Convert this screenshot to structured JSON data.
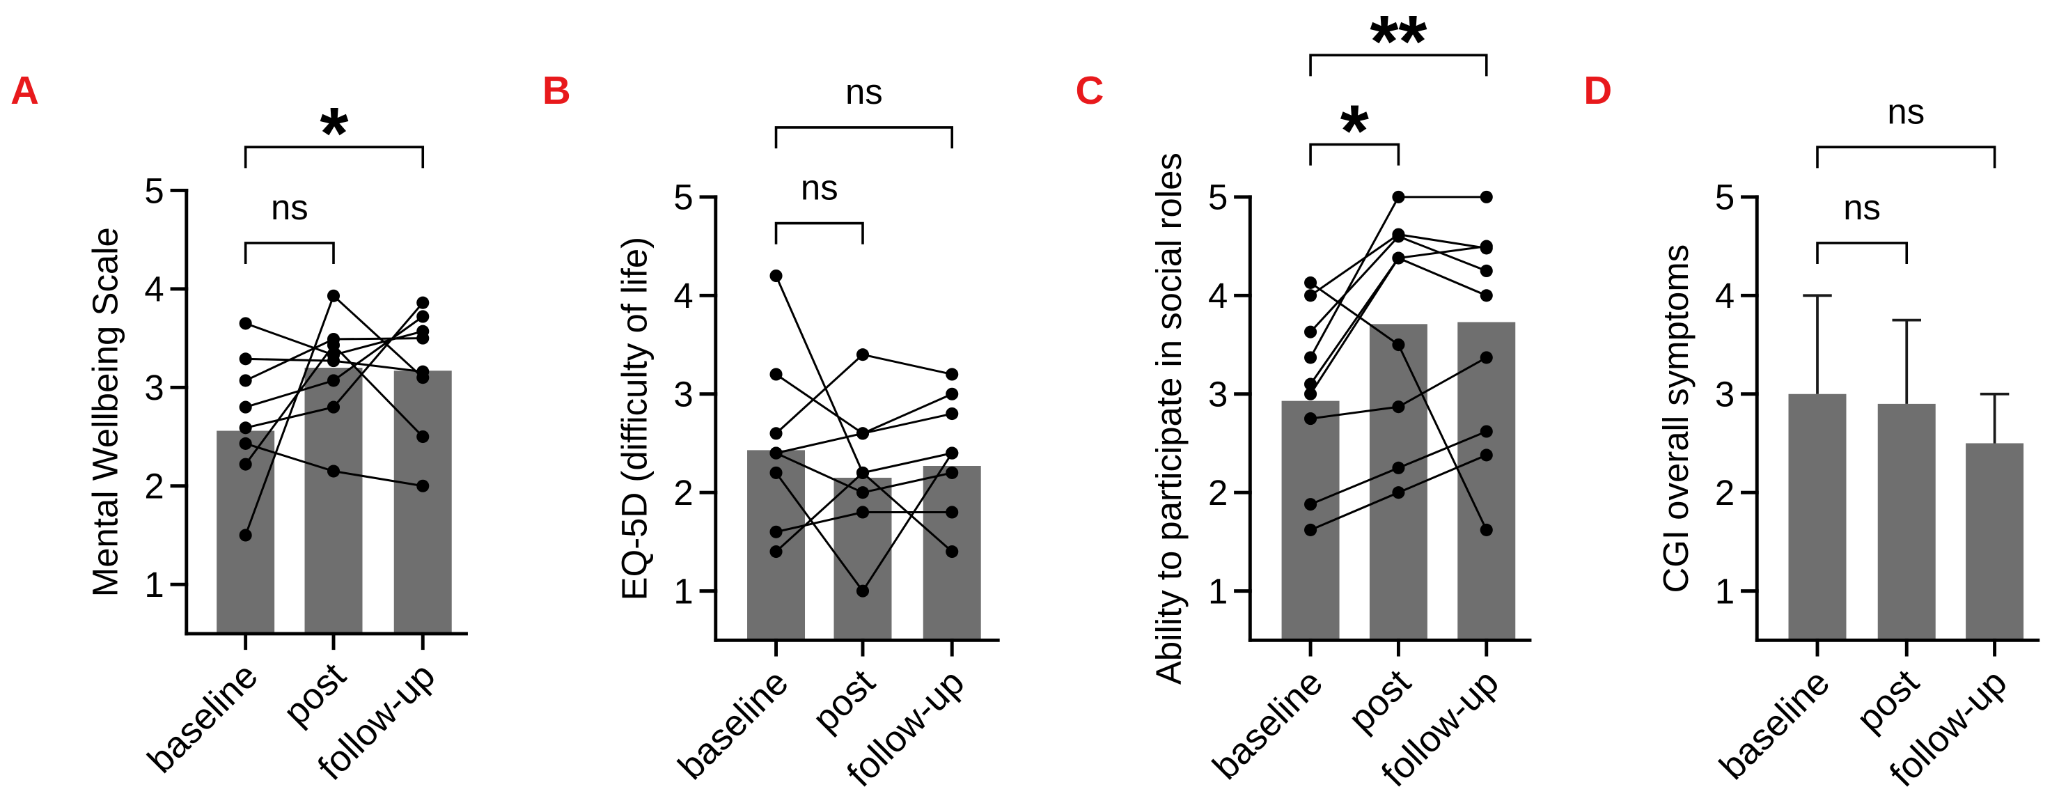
{
  "figure": {
    "colors": {
      "bar": "#6f6f6f",
      "marker": "#000000",
      "panel_label": "#e8191c"
    }
  },
  "chart_data": [
    {
      "panel_label": "A",
      "type": "bar",
      "categories": [
        "baseline",
        "post",
        "follow-up"
      ],
      "values": [
        2.56,
        3.2,
        3.17
      ],
      "paired_points": [
        [
          3.65,
          3.33,
          3.57
        ],
        [
          3.29,
          3.27,
          3.16
        ],
        [
          3.07,
          3.49,
          3.5
        ],
        [
          2.8,
          3.07,
          3.72
        ],
        [
          2.59,
          2.8,
          3.86
        ],
        [
          2.43,
          2.15,
          2.0
        ],
        [
          2.22,
          3.43,
          2.5
        ],
        [
          1.5,
          3.93,
          3.1
        ]
      ],
      "ylabel": "Mental Wellbeing Scale",
      "ylim": [
        0.5,
        5
      ],
      "yticks": [
        1,
        2,
        3,
        4,
        5
      ],
      "grid": false,
      "legend": false,
      "significance": [
        {
          "between": [
            0,
            1
          ],
          "label": "ns"
        },
        {
          "between": [
            0,
            2
          ],
          "label": "*"
        }
      ]
    },
    {
      "panel_label": "B",
      "type": "bar",
      "categories": [
        "baseline",
        "post",
        "follow-up"
      ],
      "values": [
        2.43,
        2.15,
        2.27
      ],
      "paired_points": [
        [
          4.2,
          2.2,
          2.4
        ],
        [
          3.2,
          2.6,
          3.0
        ],
        [
          2.6,
          3.4,
          3.2
        ],
        [
          2.4,
          2.6,
          2.8
        ],
        [
          2.4,
          2.0,
          2.2
        ],
        [
          2.2,
          1.0,
          2.4
        ],
        [
          1.6,
          1.8,
          1.8
        ],
        [
          1.4,
          2.2,
          1.4
        ]
      ],
      "ylabel": "EQ-5D (difficulty of life)",
      "ylim": [
        0.5,
        5
      ],
      "yticks": [
        1,
        2,
        3,
        4,
        5
      ],
      "grid": false,
      "legend": false,
      "significance": [
        {
          "between": [
            0,
            1
          ],
          "label": "ns"
        },
        {
          "between": [
            0,
            2
          ],
          "label": "ns"
        }
      ]
    },
    {
      "panel_label": "C",
      "type": "bar",
      "categories": [
        "baseline",
        "post",
        "follow-up"
      ],
      "values": [
        2.93,
        3.71,
        3.73
      ],
      "paired_points": [
        [
          4.13,
          3.5,
          1.62
        ],
        [
          4.0,
          4.62,
          4.48
        ],
        [
          3.63,
          4.6,
          4.25
        ],
        [
          3.37,
          5.0,
          5.0
        ],
        [
          3.1,
          4.38,
          4.5
        ],
        [
          3.0,
          4.38,
          4.0
        ],
        [
          2.75,
          2.87,
          3.37
        ],
        [
          1.88,
          2.25,
          2.62
        ],
        [
          1.62,
          2.0,
          2.38
        ]
      ],
      "ylabel": "Ability to participate in social roles",
      "ylim": [
        0.5,
        5
      ],
      "yticks": [
        1,
        2,
        3,
        4,
        5
      ],
      "grid": false,
      "legend": false,
      "significance": [
        {
          "between": [
            0,
            1
          ],
          "label": "*"
        },
        {
          "between": [
            0,
            2
          ],
          "label": "**"
        }
      ]
    },
    {
      "panel_label": "D",
      "type": "bar",
      "categories": [
        "baseline",
        "post",
        "follow-up"
      ],
      "values": [
        3.0,
        2.9,
        2.5
      ],
      "error_upper": [
        4.0,
        3.75,
        3.0
      ],
      "ylabel": "CGI overall symptoms",
      "ylim": [
        0.5,
        5
      ],
      "yticks": [
        1,
        2,
        3,
        4,
        5
      ],
      "grid": false,
      "legend": false,
      "significance": [
        {
          "between": [
            0,
            1
          ],
          "label": "ns"
        },
        {
          "between": [
            0,
            2
          ],
          "label": "ns"
        }
      ]
    }
  ]
}
